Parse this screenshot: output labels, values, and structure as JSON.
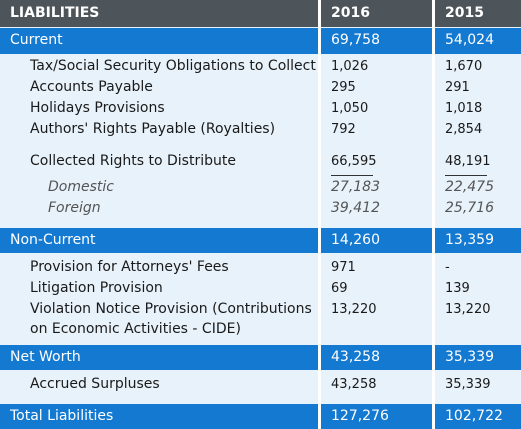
{
  "header": {
    "label": "LIABILITIES",
    "col1": "2016",
    "col2": "2015"
  },
  "current": {
    "label": "Current",
    "v2016": "69,758",
    "v2015": "54,024",
    "items": [
      {
        "label": "Tax/Social Security Obligations to Collect",
        "v2016": "1,026",
        "v2015": "1,670"
      },
      {
        "label": "Accounts Payable",
        "v2016": "295",
        "v2015": "291"
      },
      {
        "label": "Holidays Provisions",
        "v2016": "1,050",
        "v2015": "1,018"
      },
      {
        "label": "Authors' Rights Payable (Royalties)",
        "v2016": "792",
        "v2015": "2,854"
      }
    ],
    "collected": {
      "label": "Collected Rights to Distribute",
      "v2016": "66,595",
      "v2015": "48,191"
    },
    "domestic": {
      "label": "Domestic",
      "v2016": "27,183",
      "v2015": "22,475"
    },
    "foreign": {
      "label": "Foreign",
      "v2016": "39,412",
      "v2015": "25,716"
    }
  },
  "noncurrent": {
    "label": "Non-Current",
    "v2016": "14,260",
    "v2015": "13,359",
    "items": [
      {
        "label": "Provision for Attorneys' Fees",
        "v2016": "971",
        "v2015": "-"
      },
      {
        "label": "Litigation Provision",
        "v2016": "69",
        "v2015": "139"
      },
      {
        "label": "Violation Notice Provision (Contributions",
        "label2": "on Economic Activities - CIDE)",
        "v2016": "13,220",
        "v2015": "13,220"
      }
    ]
  },
  "networth": {
    "label": "Net Worth",
    "v2016": "43,258",
    "v2015": "35,339",
    "items": [
      {
        "label": "Accrued Surpluses",
        "v2016": "43,258",
        "v2015": "35,339"
      }
    ]
  },
  "total": {
    "label": "Total Liabilities",
    "v2016": "127,276",
    "v2015": "102,722"
  }
}
